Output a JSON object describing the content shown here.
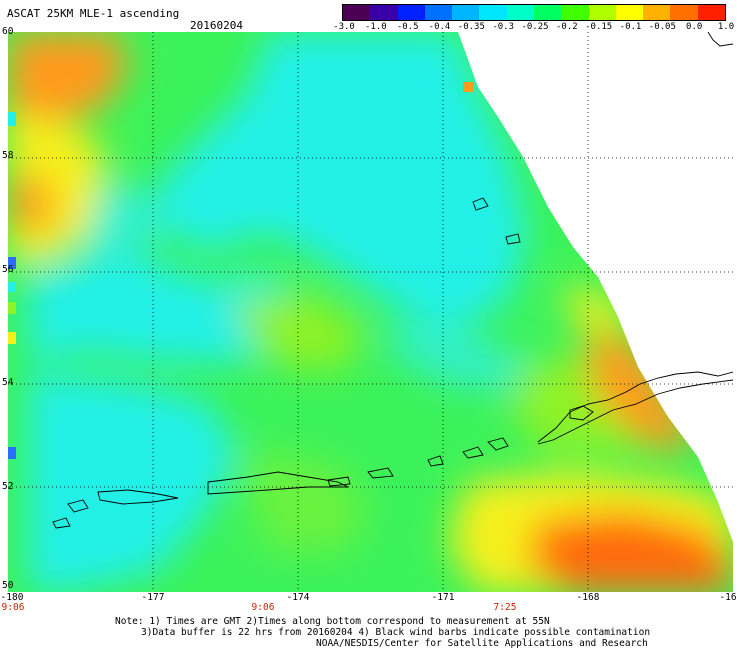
{
  "header": {
    "title": "ASCAT 25KM MLE-1 ascending",
    "date": "20160204"
  },
  "colorbar": {
    "labels": [
      "-3.0",
      "-1.0",
      "-0.5",
      "-0.4",
      "-0.35",
      "-0.3",
      "-0.25",
      "-0.2",
      "-0.15",
      "-0.1",
      "-0.05",
      "0.0",
      "1.0"
    ],
    "colors": [
      "#4b0055",
      "#3a00a8",
      "#0020ff",
      "#0070ff",
      "#00b4ff",
      "#00e6ff",
      "#00ffc8",
      "#00ff60",
      "#40ff00",
      "#b0ff00",
      "#ffff00",
      "#ffb000",
      "#ff7000",
      "#ff2000"
    ]
  },
  "map": {
    "lat_labels": [
      "60",
      "58",
      "56",
      "54",
      "52",
      "50"
    ],
    "lon_labels": [
      "-180",
      "-177",
      "-174",
      "-171",
      "-168",
      "-16"
    ],
    "time_labels": [
      "9:06",
      "9:06",
      "7:25"
    ],
    "colors": {
      "cyan": "#22f0e6",
      "green": "#3cf25a",
      "lime": "#8ef228",
      "yellow": "#f6f01a",
      "orange": "#ff9a1a",
      "dark_orange": "#ff6a10",
      "blue": "#2a6cff",
      "coast": "#000000"
    }
  },
  "notes": {
    "line1": "Note: 1) Times are GMT 2)Times along bottom correspond to measurement at 55N",
    "line2": "3)Data buffer is 22 hrs from 20160204 4) Black wind barbs indicate possible contamination",
    "line3": "NOAA/NESDIS/Center for Satellite Applications and Research"
  }
}
